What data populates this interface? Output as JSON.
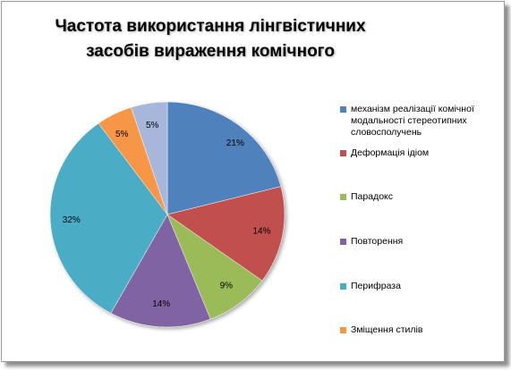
{
  "chart_data": {
    "type": "pie",
    "title_lines": [
      "Частота використання лінгвістичних",
      "засобів вираження комічного"
    ],
    "slices": [
      {
        "name": "механізм реалізації комічної модальності стереотипних словосполучень",
        "value": 21,
        "label": "21%",
        "color": "#4f81bd"
      },
      {
        "name": "Деформація ідіом",
        "value": 14,
        "label": "14%",
        "color": "#c0504d"
      },
      {
        "name": "Парадокс",
        "value": 9,
        "label": "9%",
        "color": "#9bbb59"
      },
      {
        "name": "Повторення",
        "value": 14,
        "label": "14%",
        "color": "#8064a2"
      },
      {
        "name": "Перифраза",
        "value": 32,
        "label": "32%",
        "color": "#4bacc6"
      },
      {
        "name": "Зміщення стилів",
        "value": 5,
        "label": "5%",
        "color": "#f79646"
      },
      {
        "name": "",
        "value": 5,
        "label": "5%",
        "color": "#a6b7db"
      }
    ],
    "legend_placement": "right"
  }
}
